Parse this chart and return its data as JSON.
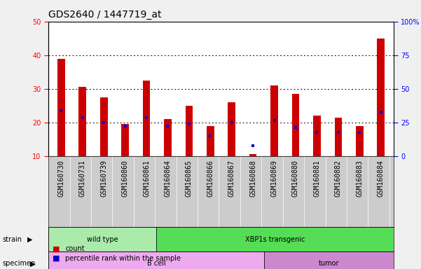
{
  "title": "GDS2640 / 1447719_at",
  "samples": [
    "GSM160730",
    "GSM160731",
    "GSM160739",
    "GSM160860",
    "GSM160861",
    "GSM160864",
    "GSM160865",
    "GSM160866",
    "GSM160867",
    "GSM160868",
    "GSM160869",
    "GSM160880",
    "GSM160881",
    "GSM160882",
    "GSM160883",
    "GSM160884"
  ],
  "count_values": [
    39.0,
    30.5,
    27.5,
    19.5,
    32.5,
    21.0,
    25.0,
    19.0,
    26.0,
    10.5,
    31.0,
    28.5,
    22.0,
    21.5,
    19.0,
    45.0
  ],
  "percentile_values": [
    23.5,
    21.5,
    20.0,
    19.0,
    21.5,
    19.0,
    19.5,
    16.0,
    20.0,
    13.0,
    20.5,
    18.5,
    17.0,
    17.0,
    17.0,
    23.0
  ],
  "ylim_left": [
    10,
    50
  ],
  "ylim_right": [
    0,
    100
  ],
  "yticks_left": [
    10,
    20,
    30,
    40,
    50
  ],
  "yticks_right": [
    0,
    25,
    50,
    75,
    100
  ],
  "ytick_labels_right": [
    "0",
    "25",
    "50",
    "75",
    "100%"
  ],
  "bar_color": "#cc0000",
  "dot_color": "#0000cc",
  "strain_groups": [
    {
      "label": "wild type",
      "start": 0,
      "end": 5,
      "color": "#aaeaaa"
    },
    {
      "label": "XBP1s transgenic",
      "start": 5,
      "end": 16,
      "color": "#55dd55"
    }
  ],
  "specimen_groups": [
    {
      "label": "B cell",
      "start": 0,
      "end": 10,
      "color": "#eeaaee"
    },
    {
      "label": "tumor",
      "start": 10,
      "end": 16,
      "color": "#cc88cc"
    }
  ],
  "bg_color": "#f0f0f0",
  "plot_bg_color": "#ffffff",
  "xtick_bg_color": "#cccccc",
  "title_fontsize": 10,
  "tick_fontsize": 7,
  "label_fontsize": 7
}
